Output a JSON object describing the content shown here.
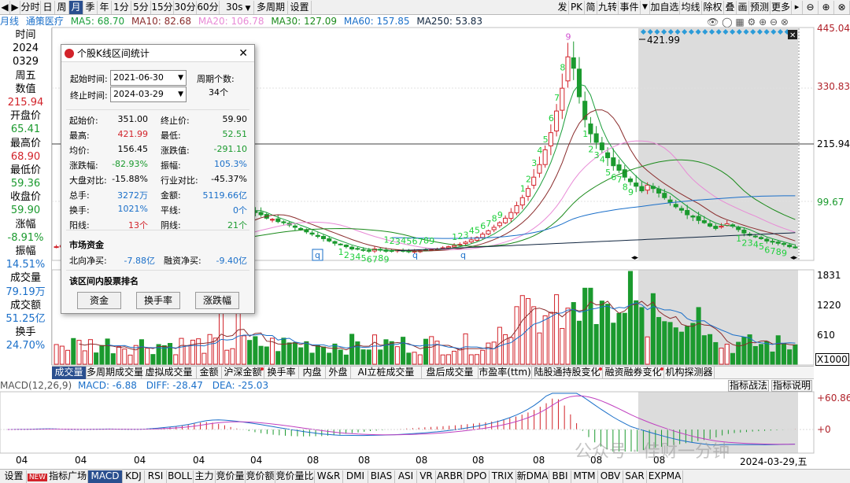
{
  "toolbar": {
    "nav_left": "◀",
    "nav_right": "▶",
    "periods": [
      "分时",
      "日",
      "周",
      "月",
      "季",
      "年",
      "1分",
      "5分",
      "15分",
      "30分",
      "60分",
      "30s",
      "多周期",
      "设置"
    ],
    "right_tools": [
      "发",
      "PK",
      "简",
      "九转",
      "事件",
      "▼",
      "加自选",
      "均线",
      "除权",
      "叠",
      "画",
      "预测",
      "更多"
    ]
  },
  "ma_bar": {
    "period": "月线",
    "stock": "通策医疗",
    "items": [
      {
        "label": "MA5: 68.70",
        "color": "#1a9e3a"
      },
      {
        "label": "MA10: 82.68",
        "color": "#8a2c2c"
      },
      {
        "label": "MA20: 106.78",
        "color": "#e88ad6"
      },
      {
        "label": "MA30: 127.09",
        "color": "#1a8a1a"
      },
      {
        "label": "MA60: 157.85",
        "color": "#1a6fc9"
      },
      {
        "label": "MA250: 53.83",
        "color": "#10253f"
      }
    ]
  },
  "left_panel": {
    "rows": [
      {
        "text": "时间",
        "color": "#000000"
      },
      {
        "text": "2024",
        "color": "#000000"
      },
      {
        "text": "0329",
        "color": "#000000"
      },
      {
        "text": "周五",
        "color": "#000000"
      },
      {
        "text": "数值",
        "color": "#000000"
      },
      {
        "text": "215.94",
        "color": "#d2232a"
      },
      {
        "text": "开盘价",
        "color": "#000000"
      },
      {
        "text": "65.41",
        "color": "#1b9a2e"
      },
      {
        "text": "最高价",
        "color": "#000000"
      },
      {
        "text": "68.90",
        "color": "#d2232a"
      },
      {
        "text": "最低价",
        "color": "#000000"
      },
      {
        "text": "59.36",
        "color": "#1b9a2e"
      },
      {
        "text": "收盘价",
        "color": "#000000"
      },
      {
        "text": "59.90",
        "color": "#1b9a2e"
      },
      {
        "text": "涨幅",
        "color": "#000000"
      },
      {
        "text": "-8.91%",
        "color": "#1b9a2e"
      },
      {
        "text": "振幅",
        "color": "#000000"
      },
      {
        "text": "14.51%",
        "color": "#1a6fc9"
      },
      {
        "text": "成交量",
        "color": "#000000"
      },
      {
        "text": "79.19万",
        "color": "#1a6fc9"
      },
      {
        "text": "成交额",
        "color": "#000000"
      },
      {
        "text": "51.25亿",
        "color": "#1a6fc9"
      },
      {
        "text": "换手",
        "color": "#000000"
      },
      {
        "text": "24.70%",
        "color": "#1a6fc9"
      }
    ]
  },
  "price_axis": [
    "445.04",
    "330.83",
    "215.94",
    "99.67"
  ],
  "peak_label": "421.99",
  "volume_axis": [
    "1831",
    "1220",
    "610",
    "X1000"
  ],
  "macd_axis": [
    "+60.86",
    "+0"
  ],
  "main_tabs": [
    {
      "label": "成交量",
      "active": true,
      "dot": false
    },
    {
      "label": "多周期成交量",
      "active": false,
      "dot": false
    },
    {
      "label": "虚拟成交量",
      "active": false,
      "dot": false
    },
    {
      "label": "金额",
      "active": false,
      "dot": false
    },
    {
      "label": "沪深金额",
      "active": false,
      "dot": true
    },
    {
      "label": "换手率",
      "active": false,
      "dot": false
    },
    {
      "label": "内盘",
      "active": false,
      "dot": false
    },
    {
      "label": "外盘",
      "active": false,
      "dot": false
    },
    {
      "label": "AI立桩成交量",
      "active": false,
      "dot": false
    },
    {
      "label": "盘后成交量",
      "active": false,
      "dot": false
    },
    {
      "label": "市盈率(ttm)",
      "active": false,
      "dot": false
    },
    {
      "label": "陆股通持股变化",
      "active": false,
      "dot": true
    },
    {
      "label": "融资融券变化",
      "active": false,
      "dot": true
    },
    {
      "label": "机构探测器",
      "active": false,
      "dot": false
    }
  ],
  "macd_bar": {
    "name": "MACD(12,26,9)",
    "macd": "MACD: -6.88",
    "diff": "DIFF: -28.47",
    "dea": "DEA: -25.03",
    "btn_tactic": "指标战法",
    "btn_desc": "指标说明"
  },
  "x_axis": [
    "04",
    "04",
    "04",
    "04",
    "04",
    "08",
    "08",
    "08",
    "08",
    "08",
    "08",
    "08",
    "2024-03-29,五"
  ],
  "bottom_tabs": [
    {
      "label": "设置",
      "active": false,
      "new": false
    },
    {
      "label": "指标广场",
      "active": false,
      "new": true
    },
    {
      "label": "MACD",
      "active": true,
      "new": false
    },
    {
      "label": "KDJ",
      "active": false,
      "new": false
    },
    {
      "label": "RSI",
      "active": false,
      "new": false
    },
    {
      "label": "BOLL",
      "active": false,
      "new": false
    },
    {
      "label": "主力",
      "active": false,
      "new": false
    },
    {
      "label": "竞价量",
      "active": false,
      "new": false
    },
    {
      "label": "竞价额",
      "active": false,
      "new": false
    },
    {
      "label": "竞价量比",
      "active": false,
      "new": false
    },
    {
      "label": "W&R",
      "active": false,
      "new": false
    },
    {
      "label": "DMI",
      "active": false,
      "new": false
    },
    {
      "label": "BIAS",
      "active": false,
      "new": false
    },
    {
      "label": "ASI",
      "active": false,
      "new": false
    },
    {
      "label": "VR",
      "active": false,
      "new": false
    },
    {
      "label": "ARBR",
      "active": false,
      "new": false
    },
    {
      "label": "DPO",
      "active": false,
      "new": false
    },
    {
      "label": "TRIX",
      "active": false,
      "new": false
    },
    {
      "label": "新DMA",
      "active": false,
      "new": false
    },
    {
      "label": "BBI",
      "active": false,
      "new": false
    },
    {
      "label": "MTM",
      "active": false,
      "new": false
    },
    {
      "label": "OBV",
      "active": false,
      "new": false
    },
    {
      "label": "SAR",
      "active": false,
      "new": false
    },
    {
      "label": "EXPMA",
      "active": false,
      "new": false
    }
  ],
  "new_badge": "NEW",
  "watermark": "公众号 · 佳财一分钟",
  "dialog": {
    "title": "个股K线区间统计",
    "start_label": "起始时间:",
    "start_value": "2021-06-30",
    "end_label": "终止时间:",
    "end_value": "2024-03-29",
    "period_count_label": "周期个数:",
    "period_count_value": "34个",
    "stats_left": [
      {
        "label": "起始价:",
        "value": "351.00",
        "color": "#000000"
      },
      {
        "label": "最高:",
        "value": "421.99",
        "color": "#d2232a"
      },
      {
        "label": "均价:",
        "value": "156.45",
        "color": "#000000"
      },
      {
        "label": "涨跌幅:",
        "value": "-82.93%",
        "color": "#1b9a2e"
      },
      {
        "label": "大盘对比:",
        "value": "-15.88%",
        "color": "#000000"
      },
      {
        "label": "总手:",
        "value": "3272万",
        "color": "#1a6fc9"
      },
      {
        "label": "换手:",
        "value": "1021%",
        "color": "#1a6fc9"
      },
      {
        "label": "阳线:",
        "value": "13个",
        "color": "#d2232a"
      }
    ],
    "stats_right": [
      {
        "label": "终止价:",
        "value": "59.90",
        "color": "#000000"
      },
      {
        "label": "最低:",
        "value": "52.51",
        "color": "#1b9a2e"
      },
      {
        "label": "涨跌值:",
        "value": "-291.10",
        "color": "#1b9a2e"
      },
      {
        "label": "振幅:",
        "value": "105.3%",
        "color": "#1a6fc9"
      },
      {
        "label": "行业对比:",
        "value": "-45.37%",
        "color": "#000000"
      },
      {
        "label": "金额:",
        "value": "5119.66亿",
        "color": "#1a6fc9"
      },
      {
        "label": "平线:",
        "value": "0个",
        "color": "#1a6fc9"
      },
      {
        "label": "阴线:",
        "value": "21个",
        "color": "#1b9a2e"
      }
    ],
    "market_title": "市场资金",
    "north_label": "北向净买:",
    "north_value": "-7.88亿",
    "margin_label": "融资净买:",
    "margin_value": "-9.40亿",
    "rank_title": "该区间内股票排名",
    "rank_buttons": [
      "资金",
      "换手率",
      "涨跌幅"
    ]
  },
  "chart_data": [
    {
      "type": "candlestick",
      "title": "通策医疗 月线",
      "ylim": [
        38,
        445.04
      ],
      "peak": 421.99,
      "closes": [
        62,
        64,
        66,
        63,
        65,
        67,
        68,
        66,
        64,
        62,
        60,
        62,
        63,
        64,
        65,
        66,
        67,
        66,
        64,
        63,
        62,
        64,
        66,
        70,
        74,
        78,
        83,
        86,
        90,
        98,
        108,
        118,
        128,
        132,
        126,
        122,
        118,
        112,
        110,
        106,
        104,
        100,
        96,
        92,
        88,
        84,
        80,
        76,
        72,
        68,
        66,
        62,
        58,
        58,
        56,
        54,
        58,
        56,
        54,
        55,
        56,
        54,
        53,
        54,
        55,
        56,
        57,
        58,
        60,
        62,
        64,
        66,
        70,
        74,
        78,
        84,
        90,
        96,
        104,
        112,
        122,
        134,
        148,
        164,
        184,
        206,
        232,
        262,
        300,
        340,
        395,
        375,
        325,
        285,
        260,
        245,
        232,
        218,
        204,
        196,
        184,
        176,
        168,
        160,
        170,
        164,
        156,
        148,
        140,
        132,
        126,
        118,
        114,
        108,
        104,
        98,
        94,
        98,
        102,
        98,
        92,
        86,
        82,
        80,
        76,
        72,
        70,
        68,
        66,
        62,
        60
      ],
      "volume_ylim": [
        0,
        1831
      ]
    },
    {
      "type": "area",
      "title": "MACD(12,26,9)",
      "ylim": [
        -30,
        60.86
      ],
      "series": [
        {
          "name": "MACD",
          "last": -6.88
        },
        {
          "name": "DIFF",
          "last": -28.47
        },
        {
          "name": "DEA",
          "last": -25.03
        }
      ]
    }
  ],
  "colors": {
    "up": "#d2232a",
    "down": "#1b9a2e",
    "accent": "#2a4f8f",
    "highlight_bg": "#dcdcdc"
  }
}
